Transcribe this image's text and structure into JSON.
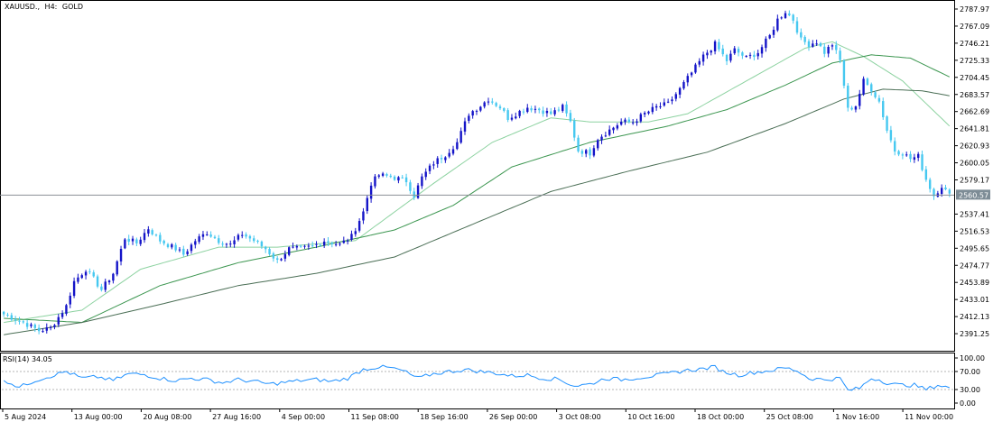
{
  "header": {
    "symbol": "XAUUSD.,",
    "timeframe": "H4:",
    "description": "GOLD"
  },
  "rsi_panel": {
    "label": "RSI(14) 34.05",
    "levels": [
      100.0,
      70.0,
      30.0,
      0.0
    ],
    "level_labels": [
      "100.00",
      "70.00",
      "30.00",
      "0.00"
    ]
  },
  "colors": {
    "bull": "#1414c8",
    "bear": "#46c8f0",
    "ma_fast": "#8cd2a0",
    "ma_mid": "#3c9650",
    "ma_slow": "#4a6e55",
    "rsi": "#1e90ff",
    "current_bg": "#7d8c96",
    "frame": "#000000"
  },
  "chart_data": {
    "type": "candlestick",
    "instrument": "XAUUSD.,",
    "timeframe": "H4:",
    "ylim": [
      2380,
      2795
    ],
    "price_ticks": [
      2787.97,
      2767.09,
      2746.21,
      2725.33,
      2704.45,
      2683.57,
      2662.69,
      2641.81,
      2620.93,
      2600.05,
      2579.17,
      2537.41,
      2516.53,
      2495.65,
      2474.77,
      2453.89,
      2433.01,
      2412.13,
      2391.25
    ],
    "current_price": 2560.57,
    "time_labels": [
      "5 Aug 2024",
      "13 Aug 00:00",
      "20 Aug 08:00",
      "27 Aug 16:00",
      "4 Sep 00:00",
      "11 Sep 08:00",
      "18 Sep 16:00",
      "26 Sep 00:00",
      "3 Oct 08:00",
      "10 Oct 16:00",
      "18 Oct 00:00",
      "25 Oct 08:00",
      "1 Nov 16:00",
      "11 Nov 00:00"
    ],
    "close_path": [
      [
        0,
        2415
      ],
      [
        5,
        2405
      ],
      [
        9,
        2395
      ],
      [
        12,
        2398
      ],
      [
        16,
        2425
      ],
      [
        18,
        2455
      ],
      [
        21,
        2470
      ],
      [
        23,
        2458
      ],
      [
        25,
        2445
      ],
      [
        28,
        2465
      ],
      [
        31,
        2508
      ],
      [
        34,
        2502
      ],
      [
        37,
        2520
      ],
      [
        40,
        2505
      ],
      [
        44,
        2495
      ],
      [
        46,
        2488
      ],
      [
        49,
        2505
      ],
      [
        52,
        2515
      ],
      [
        55,
        2505
      ],
      [
        58,
        2500
      ],
      [
        61,
        2513
      ],
      [
        64,
        2505
      ],
      [
        67,
        2495
      ],
      [
        70,
        2480
      ],
      [
        73,
        2495
      ],
      [
        76,
        2495
      ],
      [
        79,
        2498
      ],
      [
        82,
        2505
      ],
      [
        86,
        2500
      ],
      [
        89,
        2510
      ],
      [
        92,
        2540
      ],
      [
        94,
        2575
      ],
      [
        96,
        2585
      ],
      [
        99,
        2583
      ],
      [
        103,
        2578
      ],
      [
        105,
        2560
      ],
      [
        107,
        2582
      ],
      [
        110,
        2600
      ],
      [
        113,
        2610
      ],
      [
        116,
        2625
      ],
      [
        119,
        2660
      ],
      [
        122,
        2670
      ],
      [
        124,
        2678
      ],
      [
        127,
        2668
      ],
      [
        129,
        2655
      ],
      [
        131,
        2660
      ],
      [
        134,
        2668
      ],
      [
        137,
        2665
      ],
      [
        140,
        2660
      ],
      [
        143,
        2668
      ],
      [
        145,
        2650
      ],
      [
        147,
        2615
      ],
      [
        150,
        2612
      ],
      [
        152,
        2630
      ],
      [
        155,
        2640
      ],
      [
        158,
        2650
      ],
      [
        161,
        2650
      ],
      [
        164,
        2660
      ],
      [
        167,
        2668
      ],
      [
        170,
        2672
      ],
      [
        173,
        2690
      ],
      [
        176,
        2710
      ],
      [
        179,
        2730
      ],
      [
        182,
        2745
      ],
      [
        185,
        2725
      ],
      [
        187,
        2738
      ],
      [
        190,
        2728
      ],
      [
        193,
        2735
      ],
      [
        196,
        2755
      ],
      [
        198,
        2775
      ],
      [
        200,
        2785
      ],
      [
        202,
        2775
      ],
      [
        204,
        2750
      ],
      [
        206,
        2745
      ],
      [
        208,
        2748
      ],
      [
        210,
        2735
      ],
      [
        212,
        2745
      ],
      [
        214,
        2725
      ],
      [
        216,
        2665
      ],
      [
        218,
        2670
      ],
      [
        220,
        2700
      ],
      [
        222,
        2690
      ],
      [
        224,
        2675
      ],
      [
        226,
        2640
      ],
      [
        228,
        2615
      ],
      [
        230,
        2612
      ],
      [
        232,
        2605
      ],
      [
        234,
        2608
      ],
      [
        236,
        2580
      ],
      [
        238,
        2560
      ],
      [
        240,
        2572
      ],
      [
        242,
        2560
      ]
    ],
    "moving_averages": [
      {
        "color": "#8cd2a0",
        "path": [
          [
            0,
            2405
          ],
          [
            20,
            2420
          ],
          [
            35,
            2470
          ],
          [
            55,
            2497
          ],
          [
            70,
            2497
          ],
          [
            90,
            2505
          ],
          [
            110,
            2575
          ],
          [
            125,
            2625
          ],
          [
            140,
            2655
          ],
          [
            150,
            2650
          ],
          [
            165,
            2650
          ],
          [
            175,
            2660
          ],
          [
            190,
            2700
          ],
          [
            205,
            2740
          ],
          [
            212,
            2748
          ],
          [
            220,
            2730
          ],
          [
            230,
            2700
          ],
          [
            242,
            2645
          ]
        ]
      },
      {
        "color": "#3c9650",
        "path": [
          [
            0,
            2410
          ],
          [
            20,
            2405
          ],
          [
            40,
            2450
          ],
          [
            60,
            2478
          ],
          [
            80,
            2497
          ],
          [
            100,
            2518
          ],
          [
            115,
            2548
          ],
          [
            130,
            2595
          ],
          [
            150,
            2625
          ],
          [
            170,
            2645
          ],
          [
            185,
            2665
          ],
          [
            200,
            2695
          ],
          [
            212,
            2722
          ],
          [
            222,
            2732
          ],
          [
            232,
            2728
          ],
          [
            242,
            2705
          ]
        ]
      },
      {
        "color": "#4a6e55",
        "path": [
          [
            0,
            2390
          ],
          [
            20,
            2405
          ],
          [
            40,
            2427
          ],
          [
            60,
            2450
          ],
          [
            80,
            2465
          ],
          [
            100,
            2485
          ],
          [
            120,
            2525
          ],
          [
            140,
            2565
          ],
          [
            160,
            2590
          ],
          [
            180,
            2613
          ],
          [
            200,
            2648
          ],
          [
            215,
            2678
          ],
          [
            225,
            2690
          ],
          [
            235,
            2688
          ],
          [
            242,
            2682
          ]
        ]
      }
    ],
    "rsi": {
      "period": 14,
      "last": 34.05,
      "ylim": [
        0,
        100
      ],
      "path": [
        [
          0,
          52
        ],
        [
          4,
          35
        ],
        [
          8,
          50
        ],
        [
          12,
          60
        ],
        [
          16,
          70
        ],
        [
          20,
          55
        ],
        [
          24,
          58
        ],
        [
          28,
          50
        ],
        [
          32,
          65
        ],
        [
          36,
          63
        ],
        [
          40,
          55
        ],
        [
          44,
          50
        ],
        [
          48,
          55
        ],
        [
          52,
          52
        ],
        [
          56,
          45
        ],
        [
          60,
          52
        ],
        [
          64,
          48
        ],
        [
          68,
          42
        ],
        [
          72,
          46
        ],
        [
          76,
          50
        ],
        [
          80,
          52
        ],
        [
          84,
          48
        ],
        [
          88,
          55
        ],
        [
          92,
          75
        ],
        [
          96,
          80
        ],
        [
          99,
          78
        ],
        [
          102,
          72
        ],
        [
          106,
          55
        ],
        [
          110,
          65
        ],
        [
          114,
          70
        ],
        [
          118,
          74
        ],
        [
          122,
          70
        ],
        [
          126,
          66
        ],
        [
          130,
          60
        ],
        [
          134,
          62
        ],
        [
          138,
          55
        ],
        [
          142,
          53
        ],
        [
          146,
          38
        ],
        [
          150,
          42
        ],
        [
          154,
          55
        ],
        [
          158,
          52
        ],
        [
          162,
          56
        ],
        [
          166,
          60
        ],
        [
          170,
          65
        ],
        [
          174,
          72
        ],
        [
          178,
          75
        ],
        [
          182,
          80
        ],
        [
          184,
          70
        ],
        [
          188,
          62
        ],
        [
          192,
          68
        ],
        [
          196,
          72
        ],
        [
          200,
          78
        ],
        [
          203,
          72
        ],
        [
          206,
          55
        ],
        [
          210,
          52
        ],
        [
          214,
          55
        ],
        [
          216,
          28
        ],
        [
          219,
          33
        ],
        [
          222,
          55
        ],
        [
          224,
          52
        ],
        [
          226,
          45
        ],
        [
          229,
          40
        ],
        [
          233,
          40
        ],
        [
          236,
          30
        ],
        [
          239,
          40
        ],
        [
          242,
          34
        ]
      ]
    }
  }
}
